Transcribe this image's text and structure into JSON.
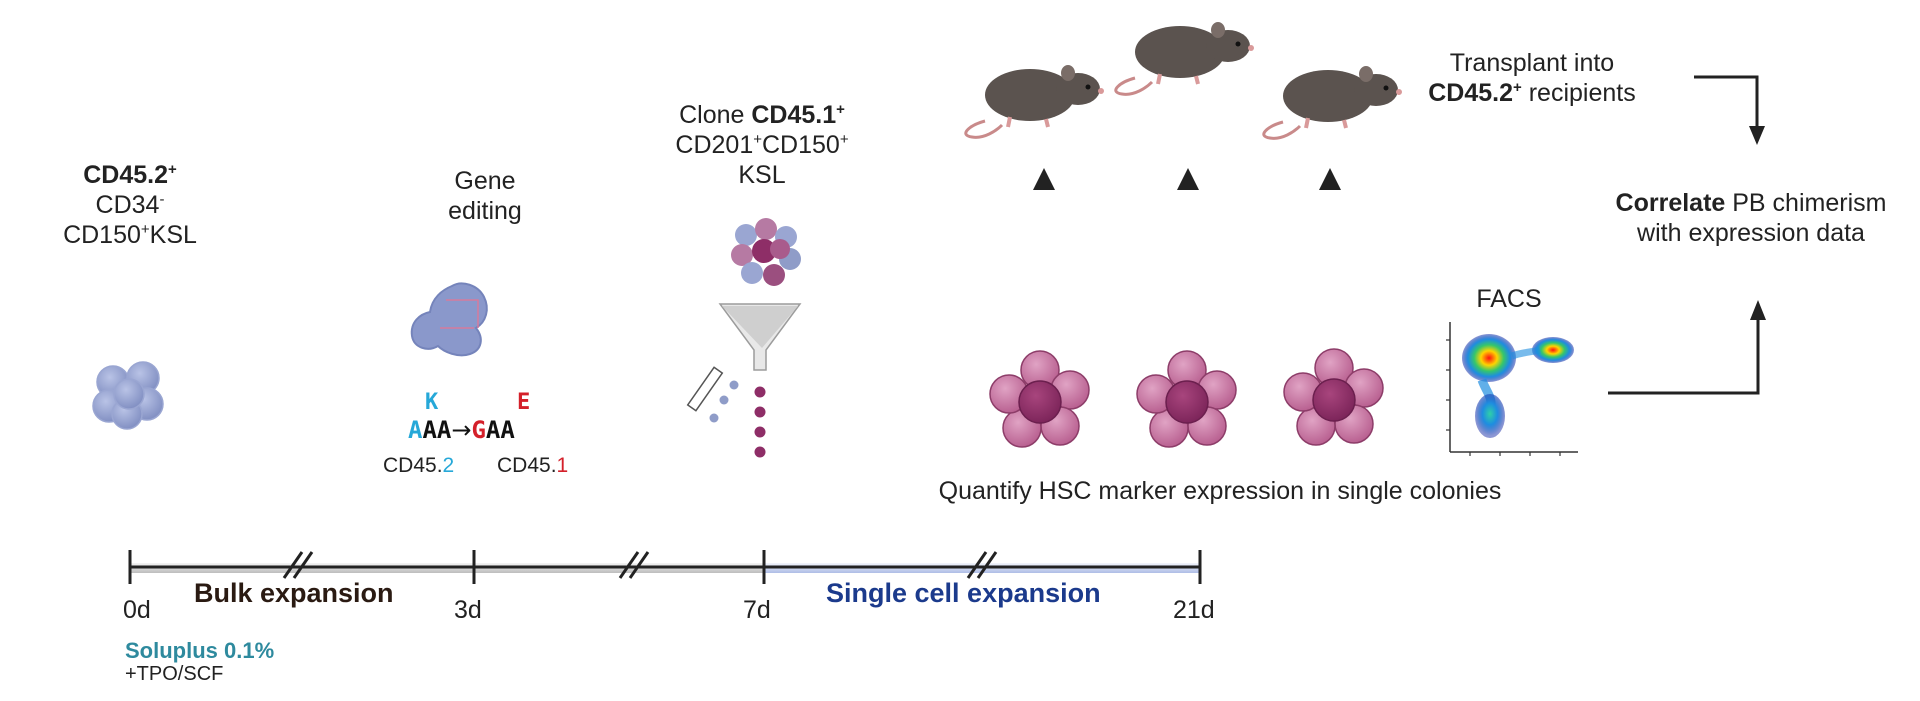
{
  "start_population": {
    "line1": "CD45.2",
    "line1_sup": "+",
    "line2": "CD34",
    "line2_sup": "-",
    "line3_pre": "CD150",
    "line3_sup": "+",
    "line3_post": "KSL"
  },
  "gene_editing": {
    "line1": "Gene",
    "line2": "editing"
  },
  "mutation": {
    "aa_from": "K",
    "aa_to": "E",
    "codon_from_first": "A",
    "codon_from_rest": "AA",
    "arrow": "→",
    "codon_to_first": "G",
    "codon_to_rest": "AA",
    "allele_from_prefix": "CD45.",
    "allele_from_suffix": "2",
    "allele_to_prefix": "CD45.",
    "allele_to_suffix": "1"
  },
  "clone": {
    "line1_pre": "Clone ",
    "line1_bold": "CD45.1",
    "line1_sup": "+",
    "line2_a": "CD201",
    "line2_sup1": "+",
    "line2_b": "CD150",
    "line2_sup2": "+",
    "line3": "KSL"
  },
  "transplant": {
    "line1": "Transplant into",
    "line2_bold": "CD45.2",
    "line2_sup": "+",
    "line2_post": " recipients"
  },
  "correlate": {
    "line1_bold": "Correlate",
    "line1_post": " PB chimerism",
    "line2": "with expression data"
  },
  "facs_label": "FACS",
  "quantify_label": "Quantify HSC marker expression in single colonies",
  "timeline": {
    "ticks": [
      "0d",
      "3d",
      "7d",
      "21d"
    ],
    "phase_bulk": "Bulk expansion",
    "phase_single": "Single cell expansion"
  },
  "culture": {
    "line1": "Soluplus 0.1%",
    "line2": "+TPO/SCF"
  },
  "colors": {
    "cell_blue": "#8f9cc8",
    "cell_purple": "#9b4f7f",
    "colony_outer": "#c26a98",
    "colony_inner": "#8e2e67",
    "blue_accent": "#26a8d8",
    "red_accent": "#d4202a",
    "soluplus_teal": "#2e8a9e",
    "single_phase_blue": "#1b3a8c",
    "mouse_body": "#5b534f"
  }
}
